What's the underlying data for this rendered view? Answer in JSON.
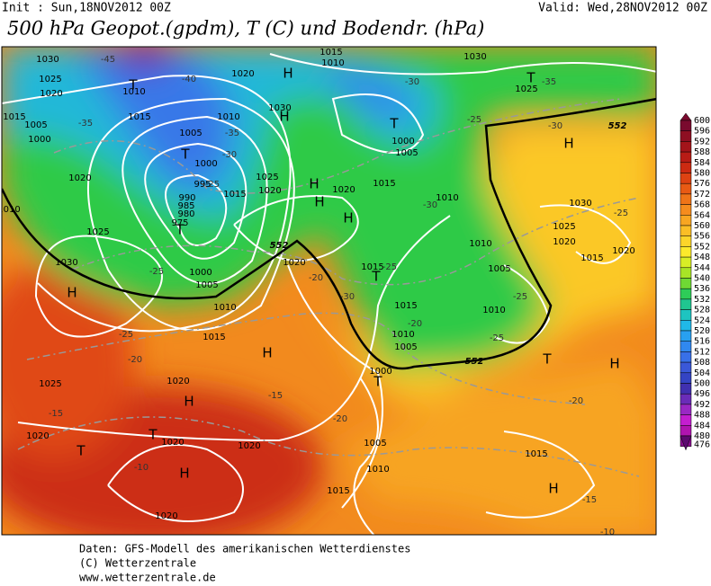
{
  "header": {
    "init": "Init : Sun,18NOV2012 00Z",
    "valid": "Valid: Wed,28NOV2012 00Z",
    "title": "500 hPa Geopot.(gpdm), T (C) und Bodendr. (hPa)"
  },
  "map": {
    "pressure_centers": [
      "H",
      "H",
      "H",
      "H",
      "H",
      "H",
      "H",
      "H",
      "H",
      "H",
      "H",
      "H",
      "T",
      "T",
      "T",
      "T",
      "T",
      "T",
      "T",
      "T",
      "T",
      "T"
    ],
    "isobar_labels": [
      1030,
      1025,
      1020,
      1015,
      1005,
      1000,
      1010,
      1015,
      1020,
      1030,
      1005,
      1000,
      995,
      990,
      985,
      980,
      975,
      1010,
      1020,
      1015,
      1025,
      1020,
      1025,
      1030,
      1000,
      1005,
      1010,
      1015,
      1020,
      1020,
      1025,
      1020,
      1020,
      1020,
      1020,
      1015,
      1010,
      1005,
      1000,
      1005,
      1010,
      1015,
      1015,
      1010,
      1015,
      1020,
      1000,
      1005,
      1010,
      1015,
      1030,
      1025,
      1010,
      1005,
      1010,
      1030,
      1025,
      1020,
      1020,
      1015,
      1015,
      1010
    ],
    "temperature_labels": [
      -45,
      -40,
      -35,
      -35,
      -30,
      -25,
      -25,
      -25,
      -20,
      -15,
      -10,
      -15,
      -20,
      -20,
      -25,
      -30,
      -20,
      -25,
      -25,
      -20,
      -15,
      -10,
      -30,
      -25,
      -30,
      -35,
      -25,
      -30
    ],
    "thickness_labels": [
      552,
      552,
      552
    ]
  },
  "colorbar": {
    "labels": [
      600,
      596,
      592,
      588,
      584,
      580,
      576,
      572,
      568,
      564,
      560,
      556,
      552,
      548,
      544,
      540,
      536,
      532,
      528,
      524,
      520,
      516,
      512,
      508,
      504,
      500,
      496,
      492,
      488,
      484,
      480,
      476
    ],
    "colors": [
      "#7a0a2e",
      "#8e0f22",
      "#a3141a",
      "#b81c16",
      "#cc2a12",
      "#dd4212",
      "#e85a14",
      "#ef7418",
      "#f58c1e",
      "#f8a622",
      "#fbbe26",
      "#fcd52a",
      "#fcea2c",
      "#d8ee26",
      "#a8e426",
      "#6fd834",
      "#2ecc58",
      "#20c690",
      "#1ec4c0",
      "#20b8e8",
      "#28a0f0",
      "#3088f0",
      "#3870e8",
      "#3a58d8",
      "#3444c4",
      "#4030b0",
      "#6a2cb8",
      "#9a28c4",
      "#c41ed0",
      "#b014b0",
      "#8a0c90",
      "#5c0870"
    ]
  },
  "footer": {
    "source": "Daten: GFS-Modell des amerikanischen Wetterdienstes",
    "copyright": "(C) Wetterzentrale",
    "url": "www.wetterzentrale.de"
  }
}
